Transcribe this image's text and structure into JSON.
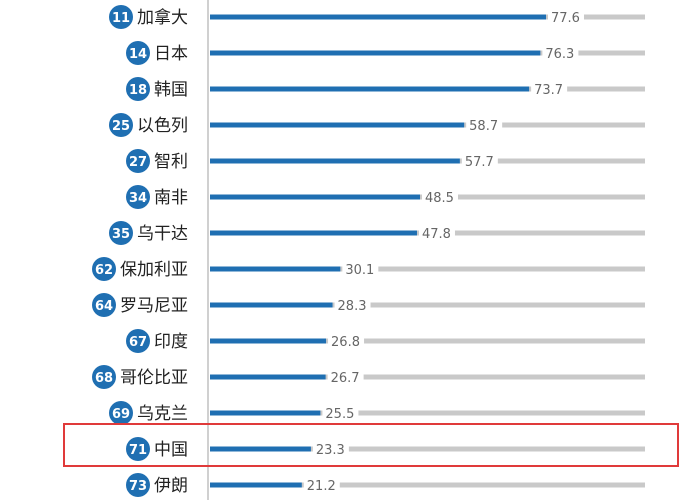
{
  "chart_data": {
    "type": "bar",
    "orientation": "horizontal",
    "xlim": [
      0,
      100
    ],
    "colors": {
      "bar": "#1f6fb2",
      "track": "#c9c9c9",
      "rank_badge": "#1f6fb2",
      "highlight": "#e03a3a",
      "value_label": "#666666",
      "country_label": "#222222"
    },
    "highlighted_category": "中国",
    "categories": [
      "加拿大",
      "日本",
      "韩国",
      "以色列",
      "智利",
      "南非",
      "乌干达",
      "保加利亚",
      "罗马尼亚",
      "印度",
      "哥伦比亚",
      "乌克兰",
      "中国",
      "伊朗"
    ],
    "ranks": [
      "11",
      "14",
      "18",
      "25",
      "27",
      "34",
      "35",
      "62",
      "64",
      "67",
      "68",
      "69",
      "71",
      "73"
    ],
    "values": [
      77.6,
      76.3,
      73.7,
      58.7,
      57.7,
      48.5,
      47.8,
      30.1,
      28.3,
      26.8,
      26.7,
      25.5,
      23.3,
      21.2
    ]
  }
}
